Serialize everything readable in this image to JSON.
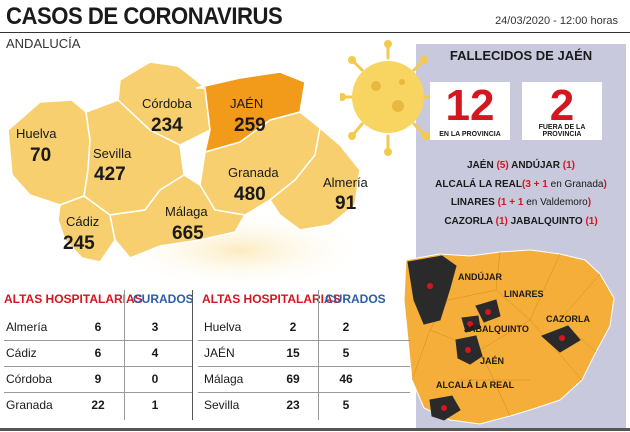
{
  "header": {
    "title": "CASOS DE CORONAVIRUS",
    "date": "24/03/2020 - 12:00 horas",
    "region": "ANDALUCÍA"
  },
  "map": {
    "provinces": [
      {
        "name": "Huelva",
        "cases": "70"
      },
      {
        "name": "Sevilla",
        "cases": "427"
      },
      {
        "name": "Córdoba",
        "cases": "234"
      },
      {
        "name": "JAÉN",
        "cases": "259"
      },
      {
        "name": "Granada",
        "cases": "480"
      },
      {
        "name": "Almería",
        "cases": "91"
      },
      {
        "name": "Cádiz",
        "cases": "245"
      },
      {
        "name": "Málaga",
        "cases": "665"
      }
    ],
    "colors": {
      "province": "#f8cf6e",
      "highlight": "#f29a1a",
      "border": "#ffffff"
    }
  },
  "deaths": {
    "title": "FALLECIDOS DE JAÉN",
    "in_province": {
      "value": "12",
      "label": "EN LA PROVINCIA"
    },
    "outside": {
      "value": "2",
      "label": "FUERA DE LA PROVINCIA"
    },
    "l1": {
      "a": "JAÉN ",
      "b": "(5)",
      "c": " ANDÚJAR ",
      "d": "(1)"
    },
    "l2": {
      "a": "ALCALÁ LA REAL",
      "b": "(3 + 1",
      "c": " en Granada",
      "d": ")"
    },
    "l3": {
      "a": "LINARES ",
      "b": "(1 + 1",
      "c": " en Valdemoro",
      "d": ")"
    },
    "l4": {
      "a": "CAZORLA ",
      "b": "(1)",
      "c": " JABALQUINTO ",
      "d": "(1)"
    }
  },
  "jaen_map": {
    "labels": [
      "ANDÚJAR",
      "LINARES",
      "JABALQUINTO",
      "CAZORLA",
      "JAÉN",
      "ALCALÁ LA REAL"
    ]
  },
  "tables": {
    "head_altas": "ALTAS HOSPITALARIAS",
    "head_curados": "CURADOS",
    "left": [
      {
        "name": "Almería",
        "altas": "6",
        "curados": "3"
      },
      {
        "name": "Cádiz",
        "altas": "6",
        "curados": "4"
      },
      {
        "name": "Córdoba",
        "altas": "9",
        "curados": "0"
      },
      {
        "name": "Granada",
        "altas": "22",
        "curados": "1"
      }
    ],
    "right": [
      {
        "name": "Huelva",
        "altas": "2",
        "curados": "2"
      },
      {
        "name": "JAÉN",
        "altas": "15",
        "curados": "5"
      },
      {
        "name": "Málaga",
        "altas": "69",
        "curados": "46"
      },
      {
        "name": "Sevilla",
        "altas": "23",
        "curados": "5"
      }
    ]
  }
}
